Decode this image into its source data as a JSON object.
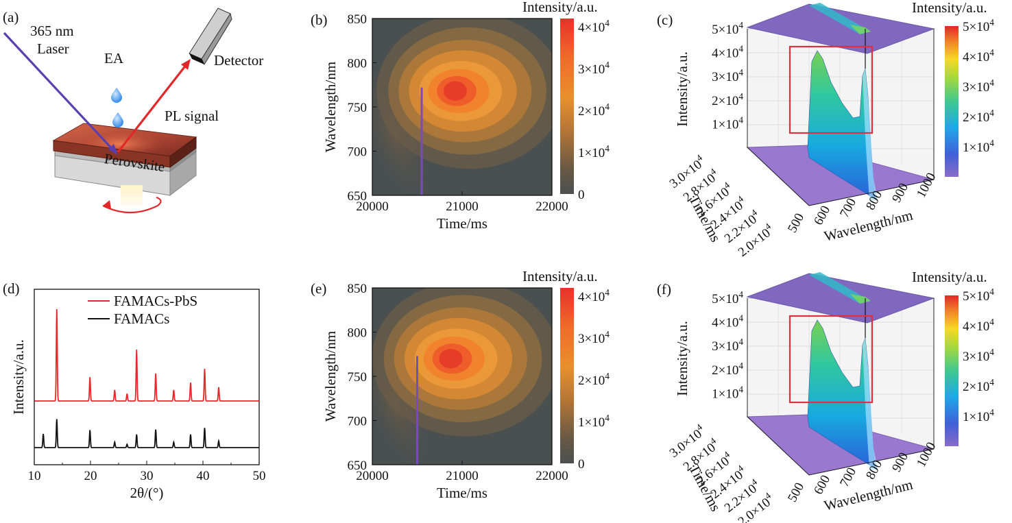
{
  "panels": {
    "a": {
      "label": "(a)",
      "laser": [
        "365 nm",
        "Laser"
      ],
      "ea": "EA",
      "detector": "Detector",
      "pl": "PL signal",
      "film": "Perovskite"
    },
    "b": {
      "label": "(b)"
    },
    "c": {
      "label": "(c)"
    },
    "d": {
      "label": "(d)"
    },
    "e": {
      "label": "(e)"
    },
    "f": {
      "label": "(f)"
    }
  },
  "chart_data": [
    {
      "id": "b",
      "type": "heatmap",
      "xlabel": "Time/ms",
      "ylabel": "Wavelength/nm",
      "colorbar_label": "Intensity/a.u.",
      "xlim": [
        20000,
        22000
      ],
      "ylim": [
        650,
        850
      ],
      "xticks": [
        "20000",
        "21000",
        "22000"
      ],
      "yticks": [
        "650",
        "700",
        "750",
        "800",
        "850"
      ],
      "colorbar_ticks": [
        "0",
        "1×10⁴",
        "2×10⁴",
        "3×10⁴",
        "4×10⁴"
      ],
      "colorbar_range": [
        0,
        42000
      ],
      "peak": {
        "time": 20900,
        "wavelength": 768,
        "intensity": 42000
      },
      "marker_line": {
        "time": 20550,
        "wavelength_range": [
          650,
          772
        ]
      }
    },
    {
      "id": "c",
      "type": "surface",
      "xlabel": "Wavelength/nm",
      "ylabel": "Time/ms",
      "zlabel": "Intensity/a.u.",
      "colorbar_label": "Intensity/a.u.",
      "xticks": [
        "500",
        "600",
        "700",
        "800",
        "900",
        "1000"
      ],
      "yticks": [
        "2.0×10⁴",
        "2.2×10⁴",
        "2.4×10⁴",
        "2.6×10⁴",
        "2.8×10⁴",
        "3.0×10⁴"
      ],
      "zticks": [
        "1×10⁴",
        "2×10⁴",
        "3×10⁴",
        "4×10⁴",
        "5×10⁴"
      ],
      "colorbar_ticks": [
        "1×10⁴",
        "2×10⁴",
        "3×10⁴",
        "4×10⁴",
        "5×10⁴"
      ],
      "zlim": [
        0,
        50000
      ]
    },
    {
      "id": "d",
      "type": "line",
      "xlabel": "2θ/(°)",
      "ylabel": "Intensity/a.u.",
      "xlim": [
        10,
        50
      ],
      "xticks": [
        "10",
        "20",
        "30",
        "40",
        "50"
      ],
      "series": [
        {
          "name": "FAMACs-PbS",
          "color": "#e8282a",
          "offset": 1,
          "peaks": [
            [
              14.0,
              1.0
            ],
            [
              19.9,
              0.26
            ],
            [
              24.3,
              0.12
            ],
            [
              26.5,
              0.08
            ],
            [
              28.2,
              0.56
            ],
            [
              31.6,
              0.3
            ],
            [
              34.8,
              0.12
            ],
            [
              37.8,
              0.2
            ],
            [
              40.3,
              0.35
            ],
            [
              42.8,
              0.15
            ]
          ]
        },
        {
          "name": "FAMACs",
          "color": "#111111",
          "offset": 0,
          "peaks": [
            [
              11.6,
              0.25
            ],
            [
              14.0,
              0.52
            ],
            [
              19.9,
              0.32
            ],
            [
              24.3,
              0.1
            ],
            [
              26.5,
              0.06
            ],
            [
              28.2,
              0.24
            ],
            [
              31.6,
              0.33
            ],
            [
              34.8,
              0.1
            ],
            [
              37.8,
              0.24
            ],
            [
              40.3,
              0.36
            ],
            [
              42.8,
              0.12
            ]
          ]
        }
      ]
    },
    {
      "id": "e",
      "type": "heatmap",
      "xlabel": "Time/ms",
      "ylabel": "Wavelength/nm",
      "colorbar_label": "Intensity/a.u.",
      "xlim": [
        20000,
        22000
      ],
      "ylim": [
        650,
        850
      ],
      "xticks": [
        "20000",
        "21000",
        "22000"
      ],
      "yticks": [
        "650",
        "700",
        "750",
        "800",
        "850"
      ],
      "colorbar_ticks": [
        "0",
        "1×10⁴",
        "2×10⁴",
        "3×10⁴",
        "4×10⁴"
      ],
      "colorbar_range": [
        0,
        42000
      ],
      "peak": {
        "time": 20850,
        "wavelength": 770,
        "intensity": 42000
      },
      "marker_line": {
        "time": 20500,
        "wavelength_range": [
          650,
          773
        ]
      }
    },
    {
      "id": "f",
      "type": "surface",
      "xlabel": "Wavelength/nm",
      "ylabel": "Time/ms",
      "zlabel": "Intensity/a.u.",
      "colorbar_label": "Intensity/a.u.",
      "xticks": [
        "500",
        "600",
        "700",
        "800",
        "900",
        "1000"
      ],
      "yticks": [
        "2.0×10⁴",
        "2.2×10⁴",
        "2.4×10⁴",
        "2.6×10⁴",
        "2.8×10⁴",
        "3.0×10⁴"
      ],
      "zticks": [
        "1×10⁴",
        "2×10⁴",
        "3×10⁴",
        "4×10⁴",
        "5×10⁴"
      ],
      "colorbar_ticks": [
        "1×10⁴",
        "2×10⁴",
        "3×10⁴",
        "4×10⁴",
        "5×10⁴"
      ],
      "zlim": [
        0,
        50000
      ]
    }
  ]
}
